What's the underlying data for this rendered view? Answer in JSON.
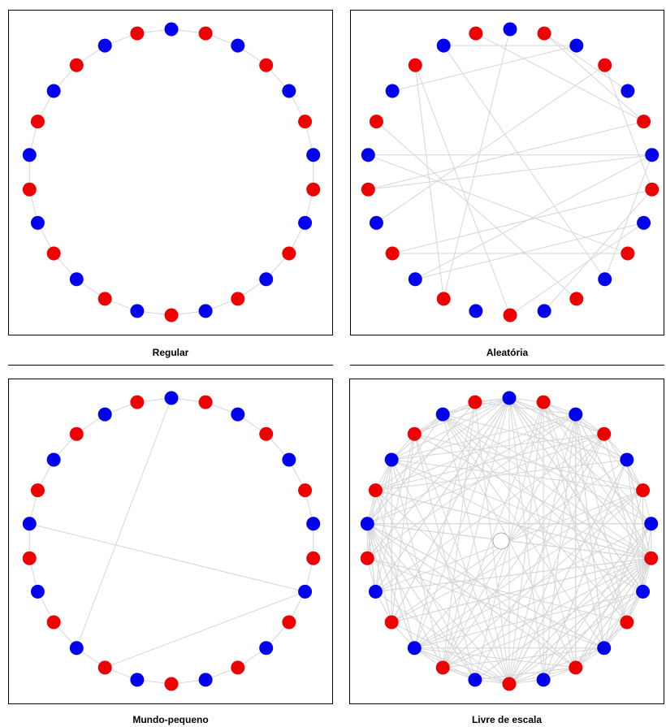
{
  "colors": {
    "red": "#ee0000",
    "blue": "#0000ee",
    "edge": "#d6d6d6",
    "frame": "#000000"
  },
  "panels": [
    {
      "key": "regular",
      "label": "Regular",
      "nodes": 26,
      "first_color": "blue"
    },
    {
      "key": "aleatoria",
      "label": "Aleatória",
      "nodes": 26,
      "first_color": "blue"
    },
    {
      "key": "mundo",
      "label": "Mundo-pequeno",
      "nodes": 26,
      "first_color": "blue"
    },
    {
      "key": "livre",
      "label": "Livre de escala",
      "nodes": 26,
      "first_color": "blue"
    }
  ],
  "graphs": {
    "regular": {
      "ring": true,
      "chords": []
    },
    "aleatoria": {
      "ring": false,
      "chords": [
        [
          1,
          5
        ],
        [
          1,
          4
        ],
        [
          19,
          5
        ],
        [
          20,
          6
        ],
        [
          10,
          6
        ],
        [
          16,
          8
        ],
        [
          13,
          8
        ],
        [
          12,
          7
        ],
        [
          17,
          7
        ],
        [
          2,
          24
        ],
        [
          13,
          23
        ],
        [
          2,
          22
        ],
        [
          15,
          23
        ],
        [
          16,
          6
        ],
        [
          10,
          24
        ],
        [
          9,
          20
        ],
        [
          7,
          3
        ],
        [
          19,
          6
        ],
        [
          0,
          15
        ],
        [
          11,
          21
        ],
        [
          25,
          5
        ],
        [
          18,
          3
        ],
        [
          9,
          17
        ]
      ]
    },
    "mundo": {
      "ring": true,
      "chords": [
        [
          0,
          16
        ],
        [
          20,
          8
        ],
        [
          15,
          8
        ]
      ]
    },
    "livre": {
      "ring": true,
      "dense": true,
      "chords": []
    }
  }
}
